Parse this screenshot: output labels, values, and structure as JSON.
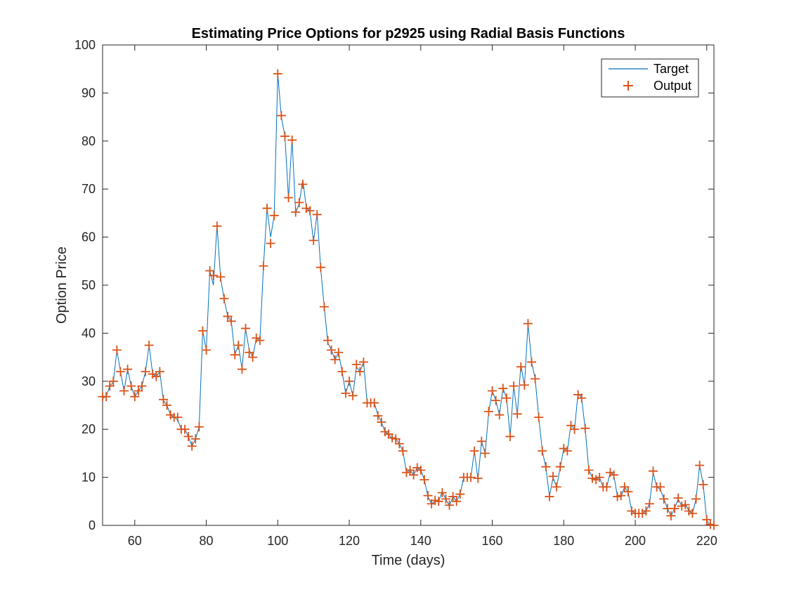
{
  "chart_data": {
    "type": "line",
    "title": "Estimating Price Options for p2925 using Radial Basis Functions",
    "xlabel": "Time (days)",
    "ylabel": "Option Price",
    "xlim": [
      51,
      222
    ],
    "ylim": [
      0,
      100
    ],
    "xticks": [
      60,
      80,
      100,
      120,
      140,
      160,
      180,
      200,
      220
    ],
    "yticks": [
      0,
      10,
      20,
      30,
      40,
      50,
      60,
      70,
      80,
      90,
      100
    ],
    "grid": false,
    "legend_position": "top-right",
    "x": [
      51,
      52,
      53,
      54,
      55,
      56,
      57,
      58,
      59,
      60,
      61,
      62,
      63,
      64,
      65,
      66,
      67,
      68,
      69,
      70,
      71,
      72,
      73,
      74,
      75,
      76,
      77,
      78,
      79,
      80,
      81,
      82,
      83,
      84,
      85,
      86,
      87,
      88,
      89,
      90,
      91,
      92,
      93,
      94,
      95,
      96,
      97,
      98,
      99,
      100,
      101,
      102,
      103,
      104,
      105,
      106,
      107,
      108,
      109,
      110,
      111,
      112,
      113,
      114,
      115,
      116,
      117,
      118,
      119,
      120,
      121,
      122,
      123,
      124,
      125,
      126,
      127,
      128,
      129,
      130,
      131,
      132,
      133,
      134,
      135,
      136,
      137,
      138,
      139,
      140,
      141,
      142,
      143,
      144,
      145,
      146,
      147,
      148,
      149,
      150,
      151,
      152,
      153,
      154,
      155,
      156,
      157,
      158,
      159,
      160,
      161,
      162,
      163,
      164,
      165,
      166,
      167,
      168,
      169,
      170,
      171,
      172,
      173,
      174,
      175,
      176,
      177,
      178,
      179,
      180,
      181,
      182,
      183,
      184,
      185,
      186,
      187,
      188,
      189,
      190,
      191,
      192,
      193,
      194,
      195,
      196,
      197,
      198,
      199,
      200,
      201,
      202,
      203,
      204,
      205,
      206,
      207,
      208,
      209,
      210,
      211,
      212,
      213,
      214,
      215,
      216,
      217,
      218,
      219,
      220,
      221,
      222
    ],
    "series": [
      {
        "name": "Target",
        "style": "line",
        "color": "#0072bd",
        "values": [
          26.5,
          26.8,
          29.0,
          29.8,
          36.5,
          32.0,
          28.0,
          32.5,
          29.0,
          26.8,
          28.0,
          29.0,
          32.0,
          37.5,
          31.5,
          31.0,
          32.0,
          26.0,
          25.0,
          23.0,
          22.5,
          22.0,
          20.0,
          20.0,
          18.5,
          16.5,
          18.0,
          20.5,
          40.5,
          36.5,
          53.0,
          50.0,
          62.5,
          51.5,
          47.0,
          43.5,
          42.5,
          35.5,
          37.5,
          32.5,
          41.0,
          36.5,
          35.0,
          39.0,
          38.5,
          54.0,
          66.0,
          60.0,
          64.5,
          94.0,
          85.0,
          81.0,
          68.0,
          80.5,
          65.0,
          67.0,
          72.0,
          66.0,
          65.5,
          59.0,
          65.0,
          53.5,
          45.5,
          38.0,
          36.5,
          34.5,
          36.0,
          32.0,
          27.5,
          30.0,
          27.0,
          33.0,
          32.0,
          34.0,
          25.5,
          25.5,
          25.5,
          23.0,
          21.5,
          19.5,
          19.0,
          18.0,
          18.0,
          17.0,
          15.5,
          11.0,
          11.5,
          10.5,
          12.0,
          11.5,
          9.5,
          6.0,
          4.5,
          5.0,
          5.0,
          7.0,
          5.5,
          4.0,
          6.0,
          5.0,
          6.5,
          10.0,
          10.0,
          10.0,
          15.5,
          9.5,
          17.5,
          15.0,
          23.5,
          28.0,
          26.0,
          23.0,
          28.5,
          26.5,
          18.5,
          29.0,
          23.0,
          33.5,
          29.0,
          42.0,
          34.0,
          30.5,
          22.5,
          15.5,
          12.0,
          6.0,
          10.0,
          8.0,
          12.0,
          16.0,
          15.5,
          21.0,
          20.0,
          27.5,
          26.5,
          20.0,
          11.5,
          10.0,
          9.5,
          10.0,
          8.0,
          8.0,
          11.0,
          10.5,
          6.0,
          6.0,
          8.0,
          7.0,
          3.0,
          2.5,
          2.5,
          2.5,
          3.0,
          4.5,
          11.0,
          8.0,
          7.5,
          5.5,
          3.5,
          2.0,
          3.5,
          5.5,
          4.0,
          4.5,
          3.0,
          2.5,
          5.5,
          12.5,
          8.5,
          1.0,
          0.0,
          0.0
        ]
      },
      {
        "name": "Output",
        "style": "marker",
        "marker": "+",
        "color": "#d95319",
        "values": [
          26.8,
          26.8,
          29.0,
          30.0,
          36.5,
          32.0,
          28.0,
          32.5,
          29.0,
          26.8,
          28.0,
          29.0,
          32.0,
          37.5,
          31.5,
          31.0,
          32.0,
          26.2,
          25.0,
          23.0,
          22.5,
          22.5,
          20.0,
          20.0,
          18.5,
          16.5,
          18.0,
          20.5,
          40.5,
          36.5,
          53.0,
          52.0,
          62.3,
          51.7,
          47.2,
          43.5,
          42.5,
          35.5,
          37.5,
          32.5,
          41.0,
          36.0,
          35.0,
          39.0,
          38.5,
          54.0,
          66.0,
          58.7,
          64.5,
          94.0,
          85.3,
          81.0,
          68.2,
          80.2,
          65.2,
          67.2,
          71.0,
          66.0,
          65.5,
          59.3,
          64.7,
          53.7,
          45.5,
          38.5,
          36.5,
          34.5,
          36.0,
          32.0,
          27.5,
          30.0,
          27.0,
          33.5,
          32.0,
          34.0,
          25.5,
          25.5,
          25.5,
          22.8,
          21.5,
          19.5,
          19.0,
          18.2,
          18.0,
          17.0,
          15.5,
          11.0,
          11.5,
          10.5,
          12.0,
          11.5,
          9.5,
          6.2,
          4.5,
          5.2,
          5.0,
          6.8,
          5.5,
          4.2,
          6.0,
          5.0,
          6.5,
          10.0,
          10.0,
          10.0,
          15.5,
          9.8,
          17.5,
          15.0,
          23.7,
          28.0,
          26.0,
          23.0,
          28.5,
          26.5,
          18.5,
          29.0,
          23.2,
          33.0,
          29.2,
          42.0,
          34.0,
          30.5,
          22.5,
          15.5,
          12.2,
          6.0,
          10.2,
          8.0,
          12.2,
          16.0,
          15.5,
          20.8,
          20.0,
          27.2,
          26.5,
          20.2,
          11.5,
          9.8,
          9.5,
          10.0,
          8.0,
          8.0,
          11.0,
          10.5,
          6.0,
          6.2,
          8.0,
          7.0,
          3.0,
          2.5,
          2.5,
          2.5,
          3.0,
          4.5,
          11.3,
          8.0,
          8.0,
          5.5,
          3.5,
          2.0,
          3.5,
          5.7,
          4.0,
          4.3,
          3.0,
          2.5,
          5.5,
          12.5,
          8.5,
          1.2,
          0.2,
          0.0
        ]
      }
    ]
  }
}
